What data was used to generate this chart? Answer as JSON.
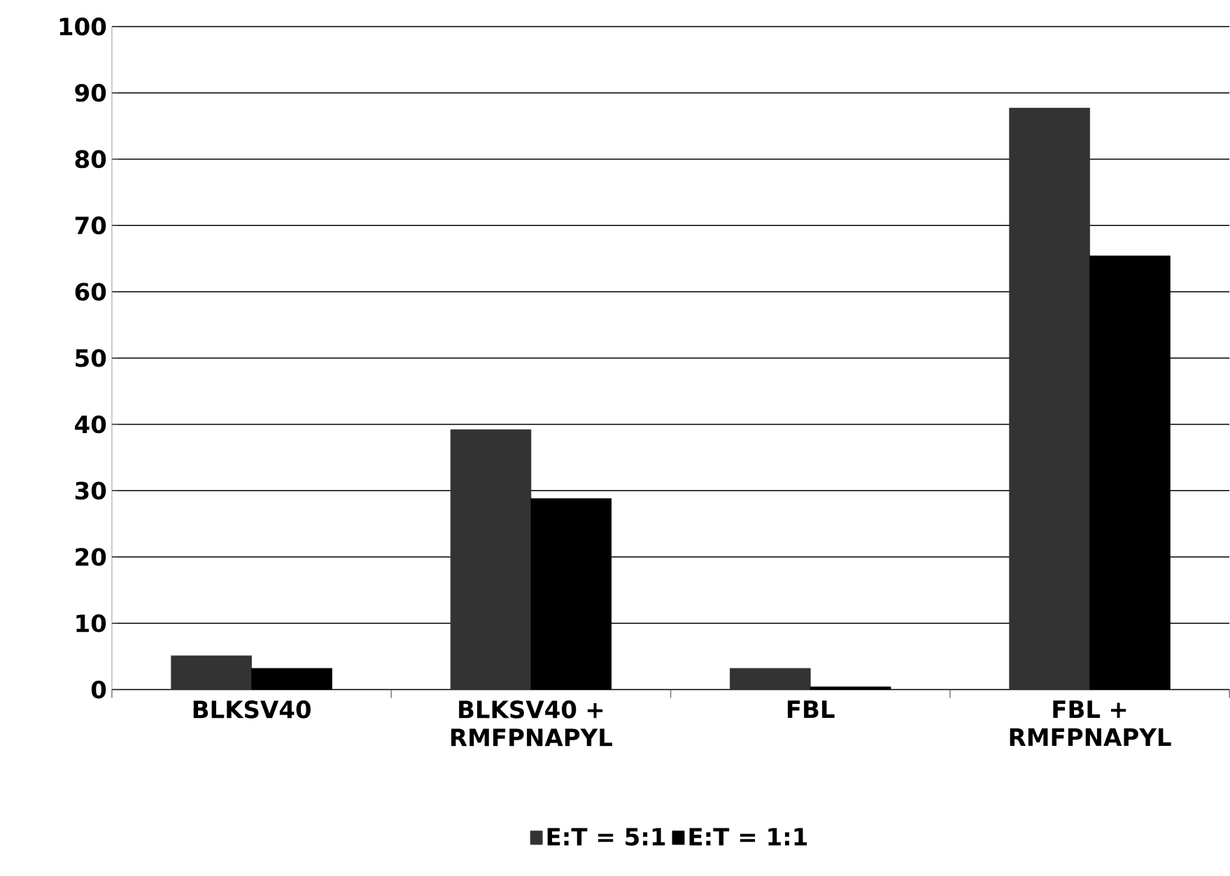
{
  "chart_data": {
    "type": "bar",
    "categories": [
      "BLKSV40",
      "BLKSV40 + RMFPNAPYL",
      "FBL",
      "FBL + RMFPNAPYL"
    ],
    "series": [
      {
        "name": "E:T = 5:1",
        "color": "#333333",
        "values": [
          5.1,
          39.2,
          3.2,
          87.7
        ]
      },
      {
        "name": "E:T = 1:1",
        "color": "#000000",
        "values": [
          3.2,
          28.8,
          0.4,
          65.4
        ]
      }
    ],
    "ylim": [
      0,
      100
    ],
    "yticks": [
      0,
      10,
      20,
      30,
      40,
      50,
      60,
      70,
      80,
      90,
      100
    ],
    "grid": "y",
    "legend": "bottom"
  }
}
